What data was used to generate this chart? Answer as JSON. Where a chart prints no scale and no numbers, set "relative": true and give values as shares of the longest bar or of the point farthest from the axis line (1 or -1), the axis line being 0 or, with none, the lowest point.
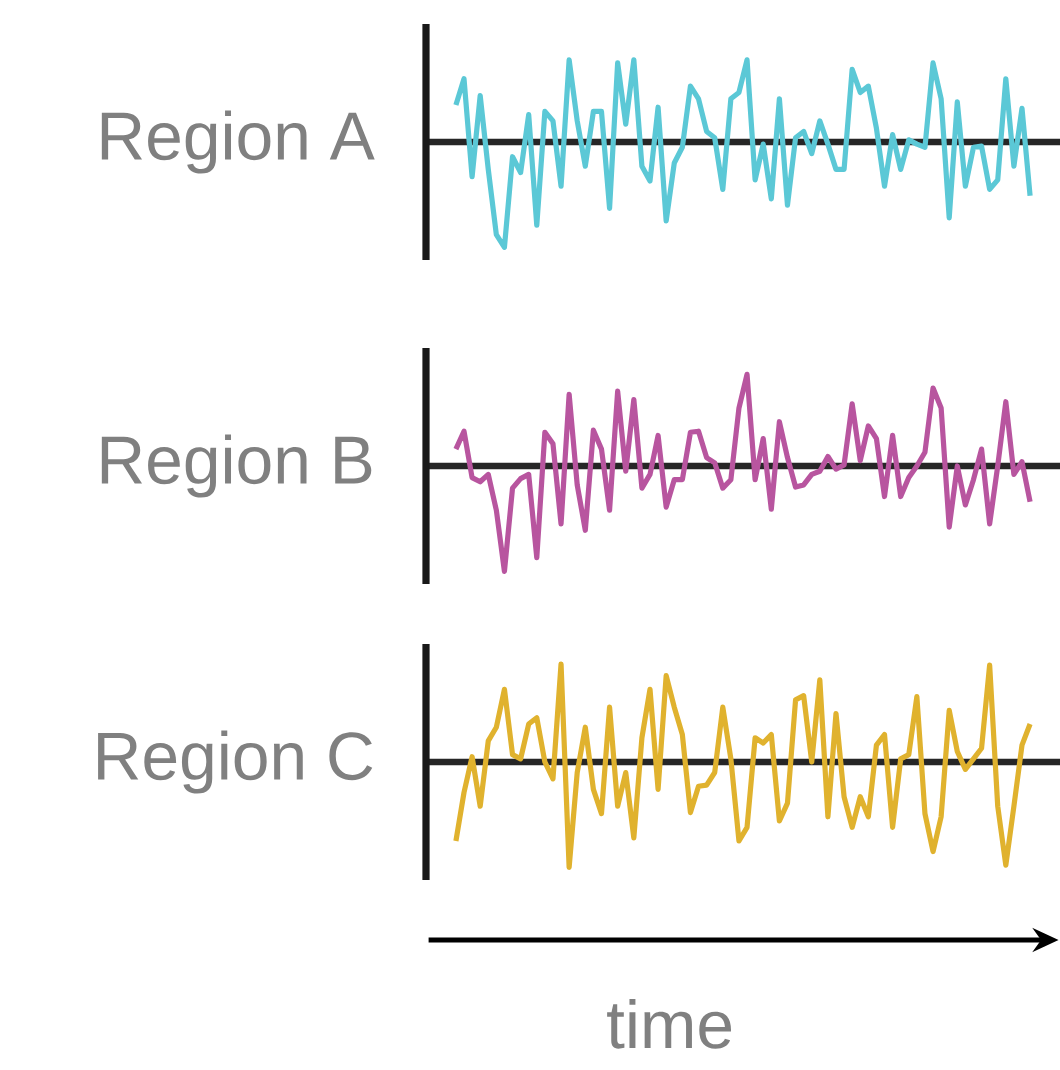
{
  "chart_data": [
    {
      "type": "line",
      "relative": true,
      "ylabel": "Region A",
      "categories": [
        null,
        null,
        null,
        null,
        null,
        null,
        null,
        null,
        null,
        null,
        null,
        null,
        null,
        null,
        null,
        null,
        null,
        null,
        null,
        null,
        null,
        null,
        null,
        null,
        null,
        null,
        null,
        null,
        null,
        null,
        null,
        null,
        null,
        null,
        null,
        null,
        null,
        null,
        null,
        null,
        null,
        null,
        null,
        null,
        null,
        null,
        null,
        null,
        null,
        null,
        null,
        null,
        null,
        null,
        null,
        null,
        null,
        null,
        null,
        null,
        null,
        null,
        null,
        null,
        null,
        null,
        null,
        null,
        null,
        null,
        null,
        null
      ],
      "series": [
        {
          "color": "#5bc8d6",
          "values": [
            0.35,
            0.6,
            -0.33,
            0.44,
            -0.26,
            -0.88,
            -1,
            -0.14,
            -0.29,
            0.26,
            -0.79,
            0.29,
            0.2,
            -0.42,
            0.78,
            0.2,
            -0.23,
            0.29,
            0.29,
            -0.63,
            0.75,
            0.17,
            0.78,
            -0.23,
            -0.37,
            0.33,
            -0.75,
            -0.2,
            -0.05,
            0.53,
            0.41,
            0.1,
            0.04,
            -0.45,
            0.41,
            0.47,
            0.78,
            -0.36,
            -0.02,
            -0.54,
            0.41,
            -0.6,
            0.04,
            0.1,
            -0.11,
            0.2,
            -0.02,
            -0.26,
            -0.26,
            0.69,
            0.47,
            0.53,
            0.13,
            -0.42,
            0.07,
            -0.26,
            0.02,
            -0.02,
            -0.05,
            0.75,
            0.41,
            -0.72,
            0.38,
            -0.42,
            -0.05,
            -0.04,
            -0.45,
            -0.36,
            0.6,
            -0.23,
            0.32,
            -0.51
          ]
        }
      ]
    },
    {
      "type": "line",
      "relative": true,
      "ylabel": "Region B",
      "categories": [
        null,
        null,
        null,
        null,
        null,
        null,
        null,
        null,
        null,
        null,
        null,
        null,
        null,
        null,
        null,
        null,
        null,
        null,
        null,
        null,
        null,
        null,
        null,
        null,
        null,
        null,
        null,
        null,
        null,
        null,
        null,
        null,
        null,
        null,
        null,
        null,
        null,
        null,
        null,
        null,
        null,
        null,
        null,
        null,
        null,
        null,
        null,
        null,
        null,
        null,
        null,
        null,
        null,
        null,
        null,
        null,
        null,
        null,
        null,
        null,
        null,
        null,
        null,
        null,
        null,
        null,
        null,
        null,
        null,
        null,
        null,
        null
      ],
      "series": [
        {
          "color": "#b8559f",
          "values": [
            0.16,
            0.33,
            -0.11,
            -0.15,
            -0.08,
            -0.42,
            -1,
            -0.21,
            -0.12,
            -0.08,
            -0.87,
            0.32,
            0.21,
            -0.55,
            0.68,
            -0.18,
            -0.61,
            0.34,
            0.16,
            -0.42,
            0.71,
            -0.05,
            0.63,
            -0.21,
            -0.08,
            0.29,
            -0.39,
            -0.13,
            -0.13,
            0.32,
            0.33,
            0.08,
            0.03,
            -0.21,
            -0.13,
            0.55,
            0.87,
            -0.13,
            0.26,
            -0.41,
            0.42,
            0.08,
            -0.2,
            -0.18,
            -0.08,
            -0.05,
            0.09,
            -0.03,
            0.01,
            0.59,
            0.05,
            0.38,
            0.26,
            -0.29,
            0.29,
            -0.29,
            -0.11,
            0,
            0.13,
            0.74,
            0.55,
            -0.58,
            0,
            -0.37,
            -0.13,
            0.16,
            -0.55,
            0,
            0.61,
            -0.08,
            0.04,
            -0.34
          ]
        }
      ]
    },
    {
      "type": "line",
      "relative": true,
      "ylabel": "Region C",
      "xlabel": "time",
      "categories": [
        null,
        null,
        null,
        null,
        null,
        null,
        null,
        null,
        null,
        null,
        null,
        null,
        null,
        null,
        null,
        null,
        null,
        null,
        null,
        null,
        null,
        null,
        null,
        null,
        null,
        null,
        null,
        null,
        null,
        null,
        null,
        null,
        null,
        null,
        null,
        null,
        null,
        null,
        null,
        null,
        null,
        null,
        null,
        null,
        null,
        null,
        null,
        null,
        null,
        null,
        null,
        null,
        null,
        null,
        null,
        null,
        null,
        null,
        null,
        null,
        null,
        null,
        null,
        null,
        null,
        null,
        null,
        null,
        null,
        null,
        null,
        null
      ],
      "series": [
        {
          "color": "#e0b22e",
          "values": [
            -0.75,
            -0.29,
            0.05,
            -0.42,
            0.2,
            0.33,
            0.69,
            0.07,
            0.03,
            0.36,
            0.42,
            0,
            -0.16,
            0.93,
            -1,
            -0.1,
            0.33,
            -0.26,
            -0.49,
            0.52,
            -0.42,
            -0.1,
            -0.72,
            0.23,
            0.69,
            -0.26,
            0.82,
            0.52,
            0.26,
            -0.48,
            -0.23,
            -0.22,
            -0.1,
            0.52,
            0.03,
            -0.75,
            -0.62,
            0.23,
            0.18,
            0.26,
            -0.56,
            -0.39,
            0.59,
            0.63,
            0,
            0.78,
            -0.52,
            0.46,
            -0.33,
            -0.62,
            -0.33,
            -0.52,
            0.16,
            0.26,
            -0.62,
            0.03,
            0.07,
            0.62,
            -0.49,
            -0.85,
            -0.52,
            0.49,
            0.1,
            -0.07,
            0.03,
            0.13,
            0.92,
            -0.42,
            -0.98,
            -0.42,
            0.16,
            0.36
          ]
        }
      ]
    }
  ]
}
